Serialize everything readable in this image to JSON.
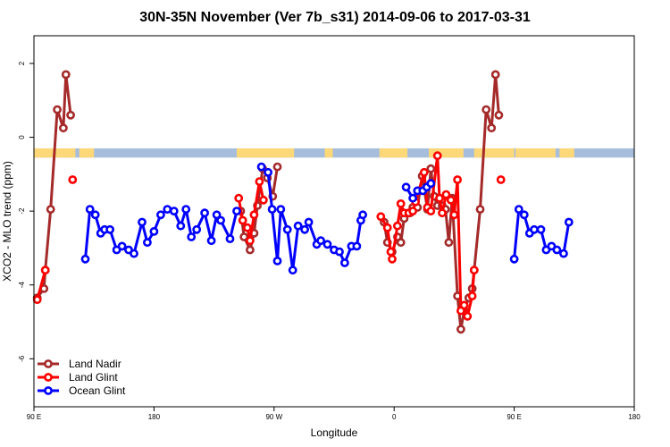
{
  "chart_data": {
    "type": "line",
    "title": "30N-35N November (Ver 7b_s31)   2014-09-06 to 2017-03-31",
    "xlabel": "Longitude",
    "ylabel": "XCO2 - MLO trend (ppm)",
    "xlim": [
      90,
      540
    ],
    "ylim": [
      -7.3,
      2.75
    ],
    "x_ticks": [
      {
        "value": 90,
        "label": "90 E"
      },
      {
        "value": 180,
        "label": "180"
      },
      {
        "value": 270,
        "label": "90 W"
      },
      {
        "value": 360,
        "label": "0"
      },
      {
        "value": 450,
        "label": "90 E"
      },
      {
        "value": 540,
        "label": "180"
      }
    ],
    "y_ticks": [
      {
        "value": 2,
        "label": "2"
      },
      {
        "value": 0,
        "label": "0"
      },
      {
        "value": -2,
        "label": "-2"
      },
      {
        "value": -4,
        "label": "-4"
      },
      {
        "value": -6,
        "label": "-6"
      }
    ],
    "grid": false,
    "legend_position": "bottom-left",
    "land_ocean_band": {
      "y_top": -0.3,
      "y_bottom": -0.55,
      "ocean_color": "#a6bddb",
      "land_color": "#fdd879",
      "land_ranges": [
        [
          90,
          121
        ],
        [
          124,
          135
        ],
        [
          242,
          285
        ],
        [
          308,
          314
        ],
        [
          349,
          370
        ],
        [
          386,
          412
        ],
        [
          420,
          450
        ],
        [
          451,
          481
        ],
        [
          484,
          495
        ]
      ]
    },
    "series": [
      {
        "name": "Land Nadir",
        "color": "#a52a2a",
        "segments": [
          [
            [
              92.5,
              -4.35
            ],
            [
              97.5,
              -4.1
            ],
            [
              98.5,
              -3.6
            ],
            [
              102.5,
              -1.95
            ],
            [
              107.5,
              0.75
            ],
            [
              112,
              0.25
            ],
            [
              114,
              1.7
            ],
            [
              117.5,
              0.6
            ]
          ],
          [
            [
              245,
              -2
            ],
            [
              247.5,
              -2.7
            ],
            [
              252,
              -3.05
            ],
            [
              255,
              -2.6
            ],
            [
              257.5,
              -1.85
            ],
            [
              261.5,
              -0.85
            ],
            [
              265,
              -1.1
            ],
            [
              269,
              -1.6
            ],
            [
              272.5,
              -0.8
            ]
          ],
          [
            [
              352.5,
              -2.3
            ],
            [
              355,
              -2.85
            ],
            [
              358.5,
              -3.1
            ],
            [
              362.5,
              -2.7
            ],
            [
              365,
              -2.85
            ],
            [
              367.5,
              -2.2
            ],
            [
              372,
              -2.05
            ],
            [
              374,
              -1.9
            ],
            [
              377.5,
              -1.9
            ],
            [
              381,
              -1.05
            ],
            [
              385,
              -1.95
            ],
            [
              387.5,
              -0.85
            ],
            [
              390,
              -1.6
            ],
            [
              392.5,
              -1.85
            ],
            [
              396,
              -1.85
            ],
            [
              398.5,
              -1.95
            ],
            [
              401,
              -2.85
            ],
            [
              403.5,
              -1.65
            ],
            [
              407.5,
              -4.3
            ],
            [
              410,
              -5.2
            ],
            [
              412.5,
              -4.7
            ],
            [
              416,
              -4.35
            ],
            [
              418.5,
              -4.1
            ],
            [
              420,
              -3.6
            ],
            [
              424.5,
              -1.95
            ],
            [
              429,
              0.75
            ],
            [
              433,
              0.25
            ],
            [
              436,
              1.7
            ],
            [
              438.5,
              0.6
            ]
          ]
        ]
      },
      {
        "name": "Land Glint",
        "color": "#ff0000",
        "segments": [
          [
            [
              92.5,
              -4.4
            ],
            [
              98.5,
              -3.6
            ]
          ],
          [
            [
              119,
              -1.15
            ]
          ],
          [
            [
              243.5,
              -1.65
            ],
            [
              246.5,
              -2.25
            ],
            [
              250,
              -2.45
            ],
            [
              252,
              -2.8
            ],
            [
              255,
              -2.1
            ],
            [
              259,
              -1.2
            ],
            [
              262,
              -1.7
            ]
          ],
          [
            [
              350,
              -2.15
            ],
            [
              355,
              -2.45
            ],
            [
              357.5,
              -3.1
            ],
            [
              358.5,
              -3.3
            ],
            [
              362.5,
              -2.4
            ],
            [
              365,
              -1.8
            ],
            [
              367.5,
              -2.05
            ],
            [
              371,
              -2.05
            ],
            [
              374,
              -2
            ],
            [
              376,
              -1.75
            ],
            [
              378.5,
              -1.45
            ],
            [
              382.5,
              -0.95
            ],
            [
              385,
              -1.9
            ],
            [
              387.5,
              -2
            ],
            [
              392.5,
              -0.5
            ],
            [
              394,
              -1.65
            ],
            [
              396,
              -2.05
            ],
            [
              399,
              -1.55
            ],
            [
              402.5,
              -1.7
            ],
            [
              405,
              -2.1
            ],
            [
              407.5,
              -1.15
            ],
            [
              410,
              -4.7
            ],
            [
              412.5,
              -4.55
            ],
            [
              415,
              -4.85
            ],
            [
              418.5,
              -4.3
            ],
            [
              420,
              -3.6
            ]
          ],
          [
            [
              440,
              -1.15
            ]
          ]
        ]
      },
      {
        "name": "Ocean Glint",
        "color": "#0000ff",
        "segments": [
          [
            [
              128.5,
              -3.3
            ],
            [
              132,
              -1.95
            ],
            [
              136,
              -2.1
            ],
            [
              140,
              -2.6
            ],
            [
              143,
              -2.5
            ],
            [
              147,
              -2.5
            ],
            [
              152,
              -3.05
            ],
            [
              156,
              -2.95
            ],
            [
              161,
              -3.05
            ],
            [
              165,
              -3.15
            ],
            [
              171,
              -2.3
            ],
            [
              175,
              -2.85
            ],
            [
              180,
              -2.55
            ],
            [
              185,
              -2.1
            ],
            [
              190,
              -1.95
            ],
            [
              195,
              -2
            ],
            [
              200,
              -2.4
            ],
            [
              204,
              -1.95
            ],
            [
              208,
              -2.7
            ],
            [
              212,
              -2.5
            ],
            [
              218,
              -2.05
            ],
            [
              223,
              -2.8
            ],
            [
              227,
              -2.1
            ],
            [
              230,
              -2.25
            ],
            [
              237,
              -2.75
            ],
            [
              242,
              -2
            ]
          ],
          [
            [
              260.5,
              -0.8
            ]
          ],
          [
            [
              265.5,
              -0.95
            ],
            [
              268.5,
              -1.95
            ],
            [
              272.5,
              -3.35
            ],
            [
              275,
              -1.95
            ],
            [
              280,
              -2.5
            ],
            [
              284,
              -3.6
            ],
            [
              288,
              -2.4
            ],
            [
              293,
              -2.5
            ],
            [
              296,
              -2.3
            ],
            [
              302,
              -2.9
            ],
            [
              305,
              -2.8
            ],
            [
              310,
              -2.9
            ],
            [
              315,
              -3.05
            ],
            [
              319,
              -3.1
            ],
            [
              323,
              -3.4
            ],
            [
              328,
              -2.95
            ],
            [
              332,
              -2.95
            ],
            [
              335,
              -2.25
            ],
            [
              336.5,
              -2.1
            ]
          ],
          [
            [
              369,
              -1.35
            ],
            [
              374,
              -1.65
            ],
            [
              377.5,
              -1.45
            ],
            [
              381.5,
              -1.45
            ],
            [
              384.5,
              -1.35
            ],
            [
              387.5,
              -1.25
            ]
          ],
          [
            [
              450,
              -3.3
            ],
            [
              453.5,
              -1.95
            ],
            [
              457.5,
              -2.1
            ],
            [
              461.5,
              -2.6
            ],
            [
              465,
              -2.5
            ],
            [
              470,
              -2.5
            ],
            [
              474,
              -3.05
            ],
            [
              478,
              -2.95
            ],
            [
              482,
              -3.05
            ],
            [
              487,
              -3.15
            ],
            [
              491,
              -2.3
            ]
          ]
        ]
      }
    ]
  }
}
